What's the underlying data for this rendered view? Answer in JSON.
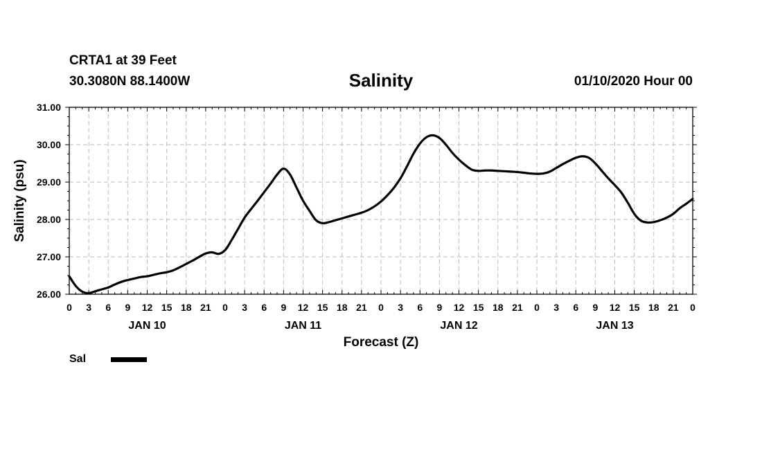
{
  "header": {
    "station": "CRTA1 at 39 Feet",
    "location": "30.3080N 88.1400W",
    "title": "Salinity",
    "datetime": "01/10/2020 Hour 00"
  },
  "legend": {
    "label": "Sal"
  },
  "colors": {
    "line": "#000000",
    "grid": "#bbbbbb",
    "background": "#ffffff"
  },
  "chart_data": {
    "type": "line",
    "title": "Salinity",
    "xlabel": "Forecast (Z)",
    "ylabel": "Salinity (psu)",
    "xlim": [
      0,
      96
    ],
    "ylim": [
      26,
      31
    ],
    "yticks": [
      {
        "v": 26,
        "label": "26.00"
      },
      {
        "v": 27,
        "label": "27.00"
      },
      {
        "v": 28,
        "label": "28.00"
      },
      {
        "v": 29,
        "label": "29.00"
      },
      {
        "v": 30,
        "label": "30.00"
      },
      {
        "v": 31,
        "label": "31.00"
      }
    ],
    "xticks": [
      {
        "h": 0,
        "label": "0"
      },
      {
        "h": 3,
        "label": "3"
      },
      {
        "h": 6,
        "label": "6"
      },
      {
        "h": 9,
        "label": "9"
      },
      {
        "h": 12,
        "label": "12"
      },
      {
        "h": 15,
        "label": "15"
      },
      {
        "h": 18,
        "label": "18"
      },
      {
        "h": 21,
        "label": "21"
      },
      {
        "h": 24,
        "label": "0"
      },
      {
        "h": 27,
        "label": "3"
      },
      {
        "h": 30,
        "label": "6"
      },
      {
        "h": 33,
        "label": "9"
      },
      {
        "h": 36,
        "label": "12"
      },
      {
        "h": 39,
        "label": "15"
      },
      {
        "h": 42,
        "label": "18"
      },
      {
        "h": 45,
        "label": "21"
      },
      {
        "h": 48,
        "label": "0"
      },
      {
        "h": 51,
        "label": "3"
      },
      {
        "h": 54,
        "label": "6"
      },
      {
        "h": 57,
        "label": "9"
      },
      {
        "h": 60,
        "label": "12"
      },
      {
        "h": 63,
        "label": "15"
      },
      {
        "h": 66,
        "label": "18"
      },
      {
        "h": 69,
        "label": "21"
      },
      {
        "h": 72,
        "label": "0"
      },
      {
        "h": 75,
        "label": "3"
      },
      {
        "h": 78,
        "label": "6"
      },
      {
        "h": 81,
        "label": "9"
      },
      {
        "h": 84,
        "label": "12"
      },
      {
        "h": 87,
        "label": "15"
      },
      {
        "h": 90,
        "label": "18"
      },
      {
        "h": 93,
        "label": "21"
      },
      {
        "h": 96,
        "label": "0"
      }
    ],
    "day_labels": [
      {
        "h": 12,
        "label": "JAN 10"
      },
      {
        "h": 36,
        "label": "JAN 11"
      },
      {
        "h": 60,
        "label": "JAN 12"
      },
      {
        "h": 84,
        "label": "JAN 13"
      }
    ],
    "series": [
      {
        "name": "Sal",
        "x": [
          0,
          1,
          2,
          3,
          4,
          5,
          6,
          7,
          8,
          9,
          10,
          11,
          12,
          13,
          14,
          15,
          16,
          17,
          18,
          19,
          20,
          21,
          22,
          23,
          24,
          25,
          26,
          27,
          28,
          29,
          30,
          31,
          32,
          33,
          34,
          35,
          36,
          37,
          38,
          39,
          40,
          41,
          42,
          43,
          44,
          45,
          46,
          47,
          48,
          49,
          50,
          51,
          52,
          53,
          54,
          55,
          56,
          57,
          58,
          59,
          60,
          61,
          62,
          63,
          64,
          65,
          66,
          67,
          68,
          69,
          70,
          71,
          72,
          73,
          74,
          75,
          76,
          77,
          78,
          79,
          80,
          81,
          82,
          83,
          84,
          85,
          86,
          87,
          88,
          89,
          90,
          91,
          92,
          93,
          94,
          95,
          96
        ],
        "values": [
          26.48,
          26.22,
          26.07,
          26.03,
          26.08,
          26.13,
          26.18,
          26.26,
          26.33,
          26.38,
          26.42,
          26.46,
          26.48,
          26.52,
          26.56,
          26.59,
          26.64,
          26.72,
          26.81,
          26.9,
          27.0,
          27.09,
          27.12,
          27.08,
          27.18,
          27.45,
          27.75,
          28.05,
          28.28,
          28.5,
          28.73,
          28.96,
          29.2,
          29.36,
          29.2,
          28.85,
          28.5,
          28.23,
          27.98,
          27.9,
          27.93,
          27.98,
          28.03,
          28.08,
          28.13,
          28.18,
          28.25,
          28.35,
          28.48,
          28.65,
          28.85,
          29.1,
          29.42,
          29.76,
          30.03,
          30.2,
          30.25,
          30.18,
          30.0,
          29.78,
          29.6,
          29.45,
          29.33,
          29.3,
          29.31,
          29.31,
          29.3,
          29.29,
          29.28,
          29.27,
          29.25,
          29.23,
          29.22,
          29.23,
          29.28,
          29.38,
          29.48,
          29.57,
          29.65,
          29.69,
          29.65,
          29.5,
          29.3,
          29.1,
          28.92,
          28.72,
          28.45,
          28.15,
          27.97,
          27.92,
          27.93,
          27.98,
          28.05,
          28.15,
          28.3,
          28.42,
          28.55
        ]
      }
    ]
  }
}
